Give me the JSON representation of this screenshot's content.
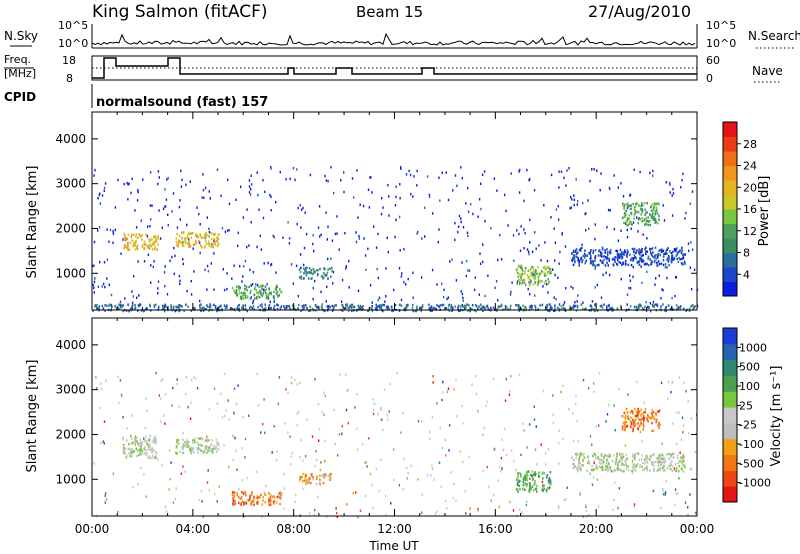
{
  "header": {
    "station": "King Salmon (fitACF)",
    "beam": "Beam 15",
    "date": "27/Aug/2010"
  },
  "summary": {
    "nsky_label": "N.Sky",
    "nsearch_label": "N.Search",
    "freq_label_1": "Freq.",
    "freq_label_2": "[MHz]",
    "nave_label": "Nave",
    "cpid_label": "CPID",
    "cpid_value": "normalsound (fast) 157",
    "left_ticks_top": [
      "10^5",
      "10^0"
    ],
    "right_ticks_top": [
      "10^5",
      "10^0"
    ],
    "left_ticks_freq": [
      "18",
      "8"
    ],
    "right_ticks_nave": [
      "60",
      "0"
    ]
  },
  "chart_data": [
    {
      "type": "heatmap",
      "title": "",
      "panel": "power",
      "xlabel": "",
      "ylabel": "Slant Range [km]",
      "xlim": [
        0,
        24
      ],
      "ylim": [
        180,
        4600
      ],
      "yticks": [
        "1000",
        "2000",
        "3000",
        "4000"
      ],
      "colorbar": {
        "label": "Power [dB]",
        "ticks": [
          "4",
          "8",
          "12",
          "16",
          "20",
          "24",
          "28"
        ],
        "colors": [
          "#0a1ee0",
          "#1e46c8",
          "#2d6ea0",
          "#3c8c64",
          "#4ea05a",
          "#78c83c",
          "#c8c828",
          "#e6b41e",
          "#f0961e",
          "#f06e14",
          "#ec3c14",
          "#e61414"
        ]
      },
      "regions": [
        {
          "t": [
            0.0,
            24.0
          ],
          "r": [
            180,
            330
          ],
          "level": 2
        },
        {
          "t": [
            1.2,
            2.6
          ],
          "r": [
            1550,
            1900
          ],
          "level": 7
        },
        {
          "t": [
            3.3,
            5.0
          ],
          "r": [
            1600,
            1950
          ],
          "level": 7
        },
        {
          "t": [
            5.5,
            7.5
          ],
          "r": [
            450,
            750
          ],
          "level": 4
        },
        {
          "t": [
            8.2,
            9.5
          ],
          "r": [
            900,
            1150
          ],
          "level": 3
        },
        {
          "t": [
            16.8,
            18.2
          ],
          "r": [
            750,
            1200
          ],
          "level": 5
        },
        {
          "t": [
            19.0,
            23.5
          ],
          "r": [
            1200,
            1600
          ],
          "level": 1
        },
        {
          "t": [
            21.0,
            22.5
          ],
          "r": [
            2100,
            2600
          ],
          "level": 4
        }
      ]
    },
    {
      "type": "heatmap",
      "title": "",
      "panel": "velocity",
      "xlabel": "Time UT",
      "ylabel": "Slant Range [km]",
      "xlim": [
        0,
        24
      ],
      "ylim": [
        180,
        4600
      ],
      "xticks": [
        "00:00",
        "04:00",
        "08:00",
        "12:00",
        "16:00",
        "20:00",
        "00:00"
      ],
      "yticks": [
        "1000",
        "2000",
        "3000",
        "4000"
      ],
      "colorbar": {
        "label": "Velocity [m s⁻¹]",
        "ticks": [
          "1000",
          "500",
          "100",
          "25",
          "-25",
          "-100",
          "-500",
          "-1000"
        ],
        "colors": [
          "#1e3cdc",
          "#2864b4",
          "#2e8a6e",
          "#4aa050",
          "#78c83c",
          "#c8c8c8",
          "#bebebe",
          "#f0a014",
          "#f07814",
          "#ec4614",
          "#e61414"
        ]
      },
      "regions": [
        {
          "t": [
            1.2,
            2.6
          ],
          "r": [
            1500,
            2000
          ],
          "level": 5
        },
        {
          "t": [
            3.3,
            5.0
          ],
          "r": [
            1600,
            1950
          ],
          "level": 5
        },
        {
          "t": [
            5.5,
            7.5
          ],
          "r": [
            450,
            750
          ],
          "level": 8
        },
        {
          "t": [
            8.2,
            9.5
          ],
          "r": [
            900,
            1150
          ],
          "level": 7
        },
        {
          "t": [
            16.8,
            18.2
          ],
          "r": [
            750,
            1200
          ],
          "level": 3
        },
        {
          "t": [
            19.0,
            23.5
          ],
          "r": [
            1200,
            1600
          ],
          "level": 5
        },
        {
          "t": [
            21.0,
            22.5
          ],
          "r": [
            2100,
            2600
          ],
          "level": 8
        }
      ]
    }
  ]
}
